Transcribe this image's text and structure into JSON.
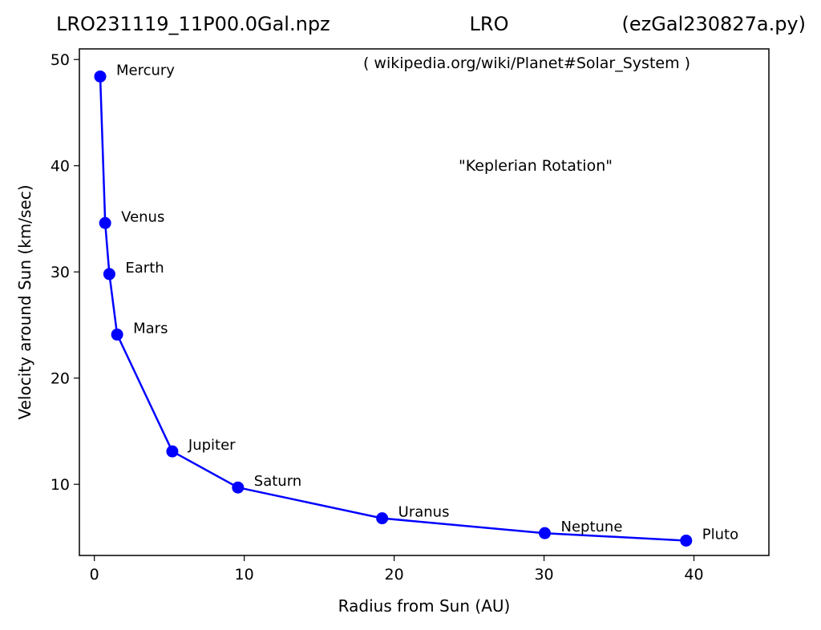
{
  "header": {
    "left": "LRO231119_11P00.0Gal.npz",
    "center": "LRO",
    "right": "(ezGal230827a.py)"
  },
  "chart_data": {
    "type": "line",
    "xlabel": "Radius from Sun (AU)",
    "ylabel": "Velocity around Sun (km/sec)",
    "xlim": [
      -1,
      45
    ],
    "ylim": [
      3.3,
      51
    ],
    "xticks": [
      0,
      10,
      20,
      30,
      40
    ],
    "yticks": [
      10,
      20,
      30,
      40,
      50
    ],
    "grid": false,
    "line_color": "#0000ff",
    "marker": "circle",
    "annotations": [
      "( wikipedia.org/wiki/Planet#Solar_System )",
      "\"Keplerian Rotation\""
    ],
    "points": [
      {
        "label": "Mercury",
        "x": 0.39,
        "y": 48.4
      },
      {
        "label": "Venus",
        "x": 0.72,
        "y": 34.6
      },
      {
        "label": "Earth",
        "x": 1.0,
        "y": 29.8
      },
      {
        "label": "Mars",
        "x": 1.52,
        "y": 24.1
      },
      {
        "label": "Jupiter",
        "x": 5.2,
        "y": 13.1
      },
      {
        "label": "Saturn",
        "x": 9.58,
        "y": 9.7
      },
      {
        "label": "Uranus",
        "x": 19.2,
        "y": 6.8
      },
      {
        "label": "Neptune",
        "x": 30.05,
        "y": 5.4
      },
      {
        "label": "Pluto",
        "x": 39.48,
        "y": 4.7
      }
    ]
  }
}
